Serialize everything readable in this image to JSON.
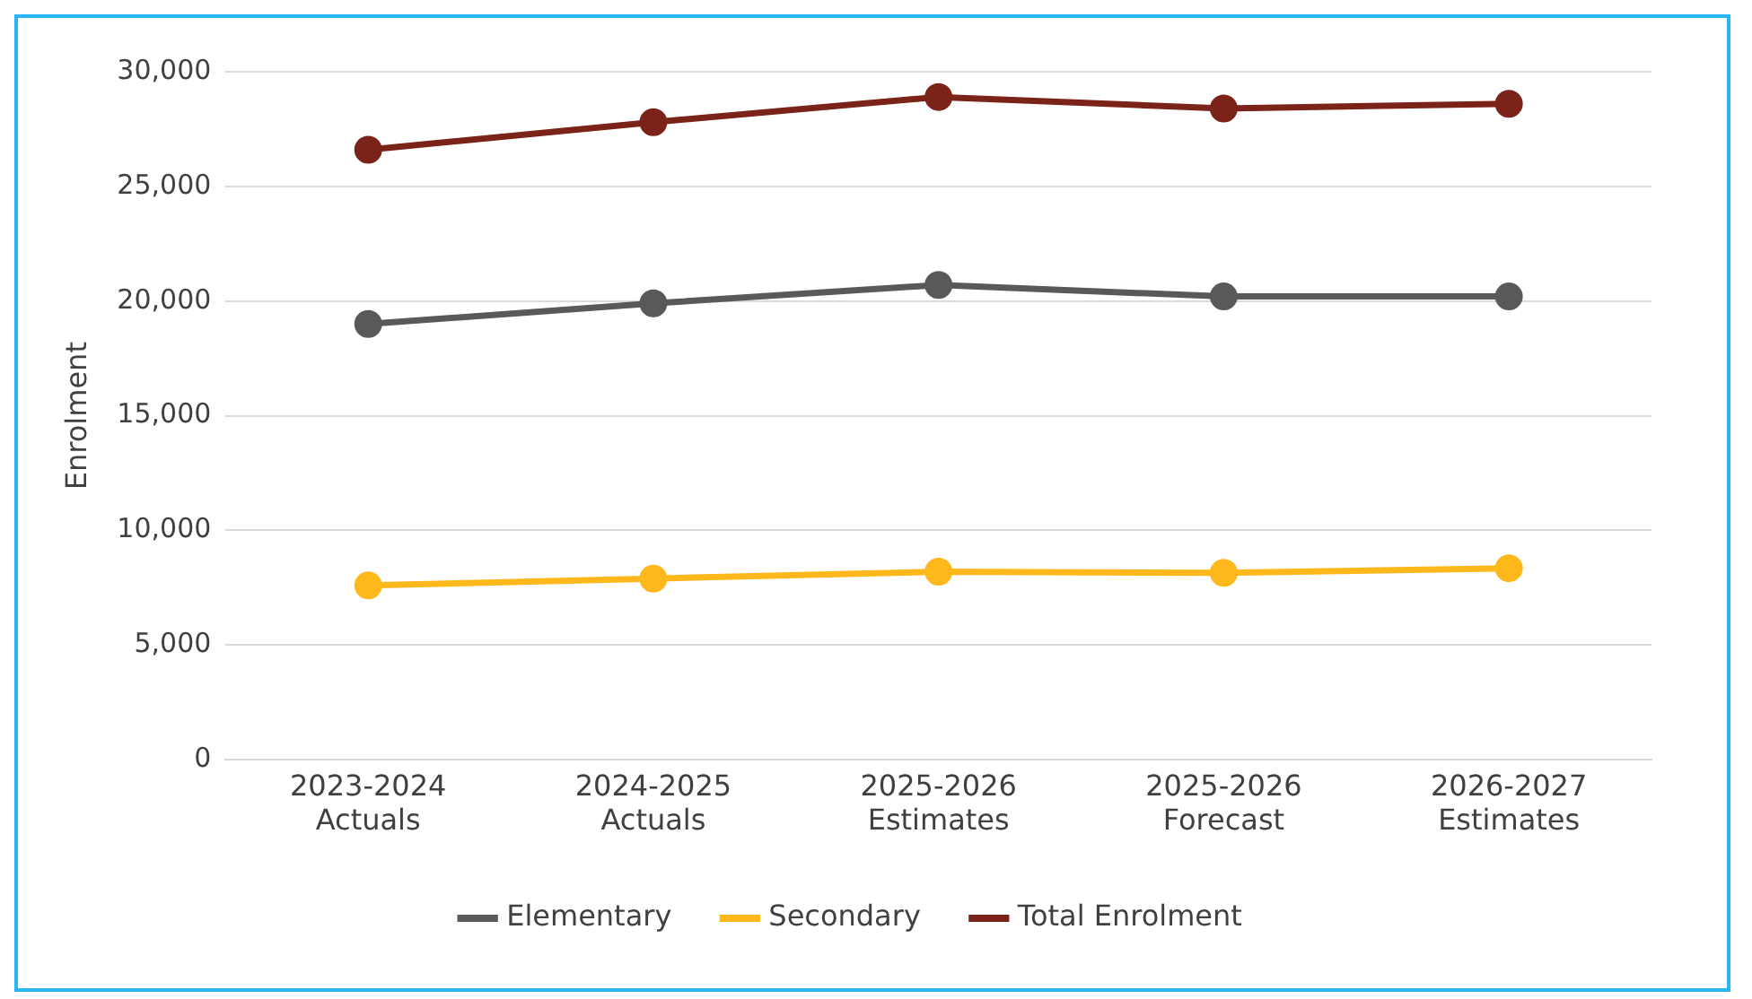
{
  "chart_data": {
    "type": "line",
    "ylabel": "Enrolment",
    "categories": [
      "2023-2024 Actuals",
      "2024-2025 Actuals",
      "2025-2026 Estimates",
      "2025-2026 Forecast",
      "2026-2027 Estimates"
    ],
    "series": [
      {
        "name": "Elementary",
        "color": "#595959",
        "values": [
          19000,
          19900,
          20700,
          20200,
          20200
        ]
      },
      {
        "name": "Secondary",
        "color": "#ffb81c",
        "values": [
          7600,
          7900,
          8200,
          8150,
          8350
        ]
      },
      {
        "name": "Total Enrolment",
        "color": "#7b2318",
        "values": [
          26600,
          27800,
          28900,
          28400,
          28600
        ]
      }
    ],
    "ylim": [
      0,
      30000
    ],
    "yticks": [
      0,
      {
        "value": 5000,
        "label": "5,000"
      },
      {
        "value": 10000,
        "label": "10,000"
      },
      {
        "value": 15000,
        "label": "15,000"
      },
      {
        "value": 20000,
        "label": "20,000"
      },
      {
        "value": 25000,
        "label": "25,000"
      },
      {
        "value": 30000,
        "label": "30,000"
      }
    ],
    "grid": "y",
    "legend": "bottom",
    "marker": "circle",
    "line_style": "solid"
  }
}
